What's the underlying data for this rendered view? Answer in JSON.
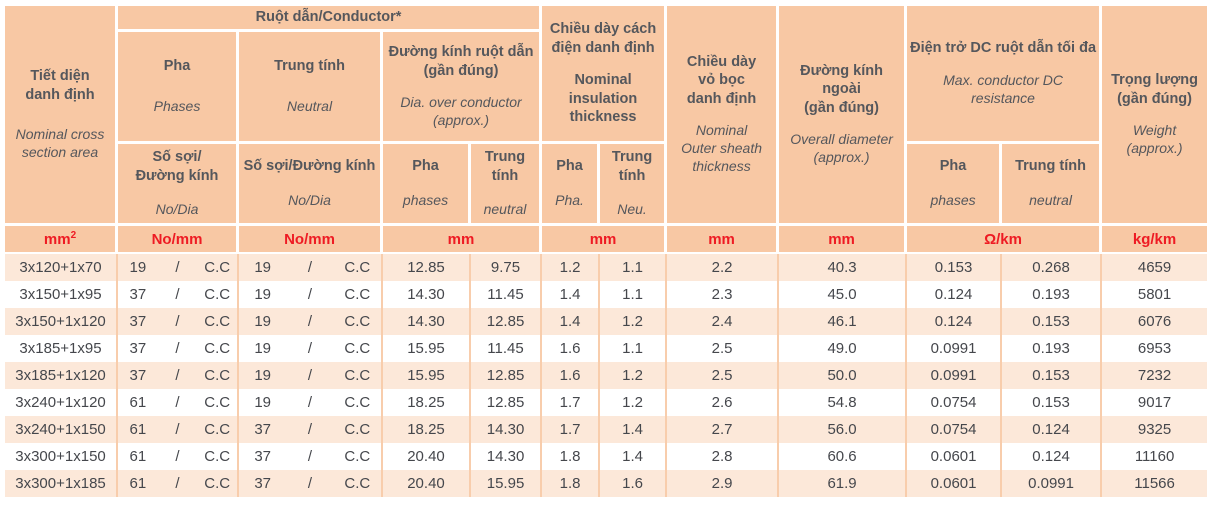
{
  "colors": {
    "header_bg": "#f8c8a4",
    "row_alt_bg": "#fce8d9",
    "row_white_bg": "#ffffff",
    "grid_line": "#f8cdac",
    "header_text": "#55575c",
    "data_text": "#45474c",
    "unit_red": "#ee1b23"
  },
  "header": {
    "nominal_section": {
      "vi": "Tiết diện\ndanh định",
      "en": "Nominal cross\nsection area"
    },
    "conductor_group": "Ruột dẫn/Conductor*",
    "phase": {
      "vi": "Pha",
      "en": "Phases"
    },
    "neutral": {
      "vi": "Trung tính",
      "en": "Neutral"
    },
    "no_dia_phase": {
      "vi": "Số sợi/\nĐường kính",
      "en": "No/Dia"
    },
    "no_dia_neutral": {
      "vi": "Số sợi/Đường kính",
      "en": "No/Dia"
    },
    "dia_over_conductor": {
      "vi": "Đường kính ruột dẫn\n(gần đúng)",
      "en": "Dia. over conductor\n(approx.)"
    },
    "dia_phase": {
      "vi": "Pha",
      "en": "phases"
    },
    "dia_neutral": {
      "vi": "Trung\ntính",
      "en": "neutral"
    },
    "insulation": {
      "vi": "Chiều dày cách\nđiện danh định",
      "en": "Nominal\ninsulation\nthickness"
    },
    "ins_phase": {
      "vi": "Pha",
      "en": "Pha."
    },
    "ins_neutral": {
      "vi": "Trung\ntính",
      "en": "Neu."
    },
    "sheath": {
      "vi": "Chiều dày\nvỏ bọc\ndanh định",
      "en": "Nominal\nOuter sheath\nthickness"
    },
    "overall_diameter": {
      "vi": "Đường kính\nngoài\n(gần đúng)",
      "en": "Overall diameter\n(approx.)"
    },
    "resistance": {
      "vi": "Điện trở DC ruột dẫn tối đa",
      "en": "Max. conductor DC\nresistance"
    },
    "res_phase": {
      "vi": "Pha",
      "en": "phases"
    },
    "res_neutral": {
      "vi": "Trung tính",
      "en": "neutral"
    },
    "weight": {
      "vi": "Trọng lượng\n(gần đúng)",
      "en": "Weight\n(approx.)"
    }
  },
  "units": {
    "section": "mm²",
    "no_dia_phase": "No/mm",
    "no_dia_neutral": "No/mm",
    "dia": "mm",
    "insulation": "mm",
    "sheath": "mm",
    "overall": "mm",
    "resistance": "Ω/km",
    "weight": "kg/km"
  },
  "separator": "/",
  "rows": [
    {
      "size": "3x120+1x70",
      "phase_no": "19",
      "phase_dia": "C.C",
      "neutral_no": "19",
      "neutral_dia": "C.C",
      "dia_phase": "12.85",
      "dia_neutral": "9.75",
      "ins_phase": "1.2",
      "ins_neutral": "1.1",
      "sheath": "2.2",
      "overall": "40.3",
      "res_phase": "0.153",
      "res_neutral": "0.268",
      "weight": "4659"
    },
    {
      "size": "3x150+1x95",
      "phase_no": "37",
      "phase_dia": "C.C",
      "neutral_no": "19",
      "neutral_dia": "C.C",
      "dia_phase": "14.30",
      "dia_neutral": "11.45",
      "ins_phase": "1.4",
      "ins_neutral": "1.1",
      "sheath": "2.3",
      "overall": "45.0",
      "res_phase": "0.124",
      "res_neutral": "0.193",
      "weight": "5801"
    },
    {
      "size": "3x150+1x120",
      "phase_no": "37",
      "phase_dia": "C.C",
      "neutral_no": "19",
      "neutral_dia": "C.C",
      "dia_phase": "14.30",
      "dia_neutral": "12.85",
      "ins_phase": "1.4",
      "ins_neutral": "1.2",
      "sheath": "2.4",
      "overall": "46.1",
      "res_phase": "0.124",
      "res_neutral": "0.153",
      "weight": "6076"
    },
    {
      "size": "3x185+1x95",
      "phase_no": "37",
      "phase_dia": "C.C",
      "neutral_no": "19",
      "neutral_dia": "C.C",
      "dia_phase": "15.95",
      "dia_neutral": "11.45",
      "ins_phase": "1.6",
      "ins_neutral": "1.1",
      "sheath": "2.5",
      "overall": "49.0",
      "res_phase": "0.0991",
      "res_neutral": "0.193",
      "weight": "6953"
    },
    {
      "size": "3x185+1x120",
      "phase_no": "37",
      "phase_dia": "C.C",
      "neutral_no": "19",
      "neutral_dia": "C.C",
      "dia_phase": "15.95",
      "dia_neutral": "12.85",
      "ins_phase": "1.6",
      "ins_neutral": "1.2",
      "sheath": "2.5",
      "overall": "50.0",
      "res_phase": "0.0991",
      "res_neutral": "0.153",
      "weight": "7232"
    },
    {
      "size": "3x240+1x120",
      "phase_no": "61",
      "phase_dia": "C.C",
      "neutral_no": "19",
      "neutral_dia": "C.C",
      "dia_phase": "18.25",
      "dia_neutral": "12.85",
      "ins_phase": "1.7",
      "ins_neutral": "1.2",
      "sheath": "2.6",
      "overall": "54.8",
      "res_phase": "0.0754",
      "res_neutral": "0.153",
      "weight": "9017"
    },
    {
      "size": "3x240+1x150",
      "phase_no": "61",
      "phase_dia": "C.C",
      "neutral_no": "37",
      "neutral_dia": "C.C",
      "dia_phase": "18.25",
      "dia_neutral": "14.30",
      "ins_phase": "1.7",
      "ins_neutral": "1.4",
      "sheath": "2.7",
      "overall": "56.0",
      "res_phase": "0.0754",
      "res_neutral": "0.124",
      "weight": "9325"
    },
    {
      "size": "3x300+1x150",
      "phase_no": "61",
      "phase_dia": "C.C",
      "neutral_no": "37",
      "neutral_dia": "C.C",
      "dia_phase": "20.40",
      "dia_neutral": "14.30",
      "ins_phase": "1.8",
      "ins_neutral": "1.4",
      "sheath": "2.8",
      "overall": "60.6",
      "res_phase": "0.0601",
      "res_neutral": "0.124",
      "weight": "11160"
    },
    {
      "size": "3x300+1x185",
      "phase_no": "61",
      "phase_dia": "C.C",
      "neutral_no": "37",
      "neutral_dia": "C.C",
      "dia_phase": "20.40",
      "dia_neutral": "15.95",
      "ins_phase": "1.8",
      "ins_neutral": "1.6",
      "sheath": "2.9",
      "overall": "61.9",
      "res_phase": "0.0601",
      "res_neutral": "0.0991",
      "weight": "11566"
    }
  ]
}
